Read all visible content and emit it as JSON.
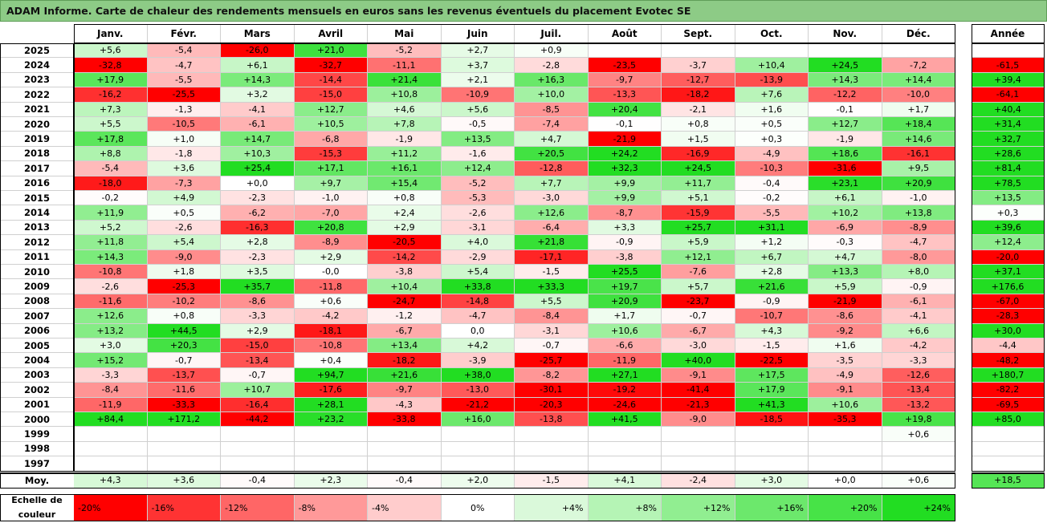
{
  "chart_data": {
    "type": "heatmap",
    "title": "ADAM Informe. Carte de chaleur des rendements mensuels en euros sans les revenus éventuels du placement Evotec SE",
    "columns": [
      "Janv.",
      "Févr.",
      "Mars",
      "Avril",
      "Mai",
      "Juin",
      "Juil.",
      "Août",
      "Sept.",
      "Oct.",
      "Nov.",
      "Déc."
    ],
    "total_column": "Année",
    "rows": [
      {
        "year": "2025",
        "months": [
          "+5,6",
          "-5,4",
          "-26,0",
          "+21,0",
          "-5,2",
          "+2,7",
          "+0,9",
          null,
          null,
          null,
          null,
          null
        ],
        "total": null
      },
      {
        "year": "2024",
        "months": [
          "-32,8",
          "-4,7",
          "+6,1",
          "-32,7",
          "-11,1",
          "+3,7",
          "-2,8",
          "-23,5",
          "-3,7",
          "+10,4",
          "+24,5",
          "-7,2"
        ],
        "total": "-61,5"
      },
      {
        "year": "2023",
        "months": [
          "+17,9",
          "-5,5",
          "+14,3",
          "-14,4",
          "+21,4",
          "+2,1",
          "+16,3",
          "-9,7",
          "-12,7",
          "-13,9",
          "+14,3",
          "+14,4"
        ],
        "total": "+39,4"
      },
      {
        "year": "2022",
        "months": [
          "-16,2",
          "-25,5",
          "+3,2",
          "-15,0",
          "+10,8",
          "-10,9",
          "+10,0",
          "-13,3",
          "-18,2",
          "+7,6",
          "-12,2",
          "-10,0"
        ],
        "total": "-64,1"
      },
      {
        "year": "2021",
        "months": [
          "+7,3",
          "-1,3",
          "-4,1",
          "+12,7",
          "+4,6",
          "+5,6",
          "-8,5",
          "+20,4",
          "-2,1",
          "+1,6",
          "-0,1",
          "+1,7"
        ],
        "total": "+40,4"
      },
      {
        "year": "2020",
        "months": [
          "+5,5",
          "-10,5",
          "-6,1",
          "+10,5",
          "+7,8",
          "-0,5",
          "-7,4",
          "-0,1",
          "+0,8",
          "+0,5",
          "+12,7",
          "+18,4"
        ],
        "total": "+31,4"
      },
      {
        "year": "2019",
        "months": [
          "+17,8",
          "+1,0",
          "+14,7",
          "-6,8",
          "-1,9",
          "+13,5",
          "+4,7",
          "-21,9",
          "+1,5",
          "+0,3",
          "-1,9",
          "+14,6"
        ],
        "total": "+32,7"
      },
      {
        "year": "2018",
        "months": [
          "+8,8",
          "-1,8",
          "+10,3",
          "-15,3",
          "+11,2",
          "-1,6",
          "+20,5",
          "+24,2",
          "-16,9",
          "-4,9",
          "+18,6",
          "-16,1"
        ],
        "total": "+28,6"
      },
      {
        "year": "2017",
        "months": [
          "-5,4",
          "+3,6",
          "+25,4",
          "+17,1",
          "+16,1",
          "+12,4",
          "-12,8",
          "+32,3",
          "+24,5",
          "-10,3",
          "-31,6",
          "+9,5"
        ],
        "total": "+81,4"
      },
      {
        "year": "2016",
        "months": [
          "-18,0",
          "-7,3",
          "+0,0",
          "+9,7",
          "+15,4",
          "-5,2",
          "+7,7",
          "+9,9",
          "+11,7",
          "-0,4",
          "+23,1",
          "+20,9"
        ],
        "total": "+78,5"
      },
      {
        "year": "2015",
        "months": [
          "-0,2",
          "+4,9",
          "-2,3",
          "-1,0",
          "+0,8",
          "-5,3",
          "-3,0",
          "+9,9",
          "+5,1",
          "-0,2",
          "+6,1",
          "-1,0"
        ],
        "total": "+13,5"
      },
      {
        "year": "2014",
        "months": [
          "+11,9",
          "+0,5",
          "-6,2",
          "-7,0",
          "+2,4",
          "-2,6",
          "+12,6",
          "-8,7",
          "-15,9",
          "-5,5",
          "+10,2",
          "+13,8"
        ],
        "total": "+0,3"
      },
      {
        "year": "2013",
        "months": [
          "+5,2",
          "-2,6",
          "-16,3",
          "+20,8",
          "+2,9",
          "-3,1",
          "-6,4",
          "+3,3",
          "+25,7",
          "+31,1",
          "-6,9",
          "-8,9"
        ],
        "total": "+39,6"
      },
      {
        "year": "2012",
        "months": [
          "+11,8",
          "+5,4",
          "+2,8",
          "-8,9",
          "-20,5",
          "+4,0",
          "+21,8",
          "-0,9",
          "+5,9",
          "+1,2",
          "-0,3",
          "-4,7"
        ],
        "total": "+12,4"
      },
      {
        "year": "2011",
        "months": [
          "+14,3",
          "-9,0",
          "-2,3",
          "+2,9",
          "-14,2",
          "-2,9",
          "-17,1",
          "-3,8",
          "+12,1",
          "+6,7",
          "+4,7",
          "-8,0"
        ],
        "total": "-20,0"
      },
      {
        "year": "2010",
        "months": [
          "-10,8",
          "+1,8",
          "+3,5",
          "-0,0",
          "-3,8",
          "+5,4",
          "-1,5",
          "+25,5",
          "-7,6",
          "+2,8",
          "+13,3",
          "+8,0"
        ],
        "total": "+37,1"
      },
      {
        "year": "2009",
        "months": [
          "-2,6",
          "-25,3",
          "+35,7",
          "-11,8",
          "+10,4",
          "+33,8",
          "+33,3",
          "+19,7",
          "+5,7",
          "+21,6",
          "+5,9",
          "-0,9"
        ],
        "total": "+176,6"
      },
      {
        "year": "2008",
        "months": [
          "-11,6",
          "-10,2",
          "-8,6",
          "+0,6",
          "-24,7",
          "-14,8",
          "+5,5",
          "+20,9",
          "-23,7",
          "-0,9",
          "-21,9",
          "-6,1"
        ],
        "total": "-67,0"
      },
      {
        "year": "2007",
        "months": [
          "+12,6",
          "+0,8",
          "-3,3",
          "-4,2",
          "-1,2",
          "-4,7",
          "-8,4",
          "+1,7",
          "-0,7",
          "-10,7",
          "-8,6",
          "-4,1"
        ],
        "total": "-28,3"
      },
      {
        "year": "2006",
        "months": [
          "+13,2",
          "+44,5",
          "+2,9",
          "-18,1",
          "-6,7",
          "0,0",
          "-3,1",
          "+10,6",
          "-6,7",
          "+4,3",
          "-9,2",
          "+6,6"
        ],
        "total": "+30,0"
      },
      {
        "year": "2005",
        "months": [
          "+3,0",
          "+20,3",
          "-15,0",
          "-10,8",
          "+13,4",
          "+4,2",
          "-0,7",
          "-6,6",
          "-3,0",
          "-1,5",
          "+1,6",
          "-4,2"
        ],
        "total": "-4,4"
      },
      {
        "year": "2004",
        "months": [
          "+15,2",
          "-0,7",
          "-13,4",
          "+0,4",
          "-18,2",
          "-3,9",
          "-25,7",
          "-11,9",
          "+40,0",
          "-22,5",
          "-3,5",
          "-3,3"
        ],
        "total": "-48,2"
      },
      {
        "year": "2003",
        "months": [
          "-3,3",
          "-13,7",
          "-0,7",
          "+94,7",
          "+21,6",
          "+38,0",
          "-8,2",
          "+27,1",
          "-9,1",
          "+17,5",
          "-4,9",
          "-12,6"
        ],
        "total": "+180,7"
      },
      {
        "year": "2002",
        "months": [
          "-8,4",
          "-11,6",
          "+10,7",
          "-17,6",
          "-9,7",
          "-13,0",
          "-30,1",
          "-19,2",
          "-41,4",
          "+17,9",
          "-9,1",
          "-13,4"
        ],
        "total": "-82,2"
      },
      {
        "year": "2001",
        "months": [
          "-11,9",
          "-33,3",
          "-16,4",
          "+28,1",
          "-4,3",
          "-21,2",
          "-20,3",
          "-24,6",
          "-21,3",
          "+41,3",
          "+10,6",
          "-13,2"
        ],
        "total": "-69,5"
      },
      {
        "year": "2000",
        "months": [
          "+84,4",
          "+171,2",
          "-44,2",
          "+23,2",
          "-33,8",
          "+16,0",
          "-13,8",
          "+41,5",
          "-9,0",
          "-18,5",
          "-35,3",
          "+19,8"
        ],
        "total": "+85,0"
      },
      {
        "year": "1999",
        "months": [
          null,
          null,
          null,
          null,
          null,
          null,
          null,
          null,
          null,
          null,
          null,
          "+0,6"
        ],
        "total": null
      },
      {
        "year": "1998",
        "months": [
          null,
          null,
          null,
          null,
          null,
          null,
          null,
          null,
          null,
          null,
          null,
          null
        ],
        "total": null
      },
      {
        "year": "1997",
        "months": [
          null,
          null,
          null,
          null,
          null,
          null,
          null,
          null,
          null,
          null,
          null,
          null
        ],
        "total": null
      }
    ],
    "average": {
      "label": "Moy.",
      "months": [
        "+4,3",
        "+3,6",
        "-0,4",
        "+2,3",
        "-0,4",
        "+2,0",
        "-1,5",
        "+4,1",
        "-2,4",
        "+3,0",
        "+0,0",
        "+0,6"
      ],
      "total": "+18,5"
    },
    "color_scale": {
      "label": "Echelle de couleur",
      "stops": [
        "-20%",
        "-16%",
        "-12%",
        "-8%",
        "-4%",
        "0%",
        "+4%",
        "+8%",
        "+12%",
        "+16%",
        "+20%",
        "+24%"
      ],
      "negative_color": "#ff0000",
      "neutral_color": "#ffffff",
      "positive_color": "#22dd22"
    },
    "grid": true
  },
  "style_colors": {
    "title_bar": "#8dcb86",
    "title_bar_border": "#5f9e58",
    "gridline": "#d0d0d0",
    "frame": "#000000"
  }
}
